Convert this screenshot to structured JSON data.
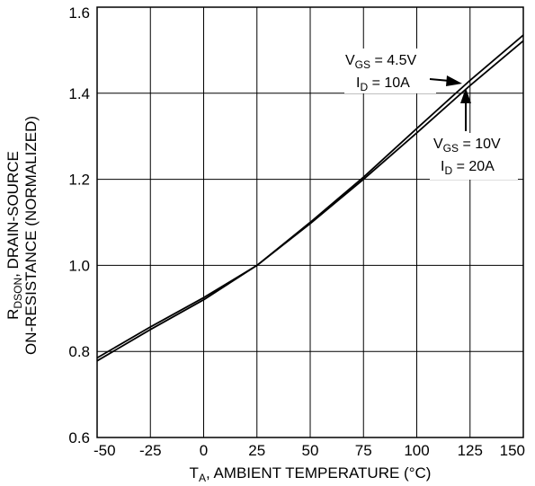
{
  "chart_data": {
    "type": "line",
    "title": "",
    "xlabel": {
      "main": "T",
      "sub": "A",
      "rest": ", AMBIENT TEMPERATURE (°C)"
    },
    "ylabel": {
      "line1_main": "R",
      "line1_sub": "DSON",
      "line1_rest": ", DRAIN-SOURCE",
      "line2": "ON-RESISTANCE (NORMALIZED)"
    },
    "xlim": [
      -50,
      150
    ],
    "ylim": [
      0.6,
      1.6
    ],
    "x_ticks": [
      -50,
      -25,
      0,
      25,
      50,
      75,
      100,
      125,
      150
    ],
    "x_tick_labels": [
      "-50",
      "-25",
      "0",
      "25",
      "50",
      "75",
      "100",
      "125",
      "150"
    ],
    "y_ticks": [
      0.6,
      0.8,
      1.0,
      1.2,
      1.4,
      1.6
    ],
    "y_tick_labels": [
      "0.6",
      "0.8",
      "1.0",
      "1.2",
      "1.4",
      "1.6"
    ],
    "grid": true,
    "series": [
      {
        "x": [
          -50,
          -25,
          0,
          25,
          50,
          75,
          100,
          125,
          150
        ],
        "y": [
          0.785,
          0.857,
          0.925,
          1.0,
          1.1,
          1.205,
          1.318,
          1.43,
          1.535
        ]
      },
      {
        "x": [
          -50,
          -25,
          0,
          25,
          50,
          75,
          100,
          125,
          150
        ],
        "y": [
          0.778,
          0.851,
          0.92,
          1.0,
          1.097,
          1.2,
          1.308,
          1.418,
          1.522
        ]
      }
    ],
    "annotations": [
      {
        "line1_main": "V",
        "line1_sub": "GS",
        "line1_rest": " = 4.5V",
        "line2_main": "I",
        "line2_sub": "D",
        "line2_rest": " = 10A"
      },
      {
        "line1_main": "V",
        "line1_sub": "GS",
        "line1_rest": " = 10V",
        "line2_main": "I",
        "line2_sub": "D",
        "line2_rest": " = 20A"
      }
    ]
  }
}
